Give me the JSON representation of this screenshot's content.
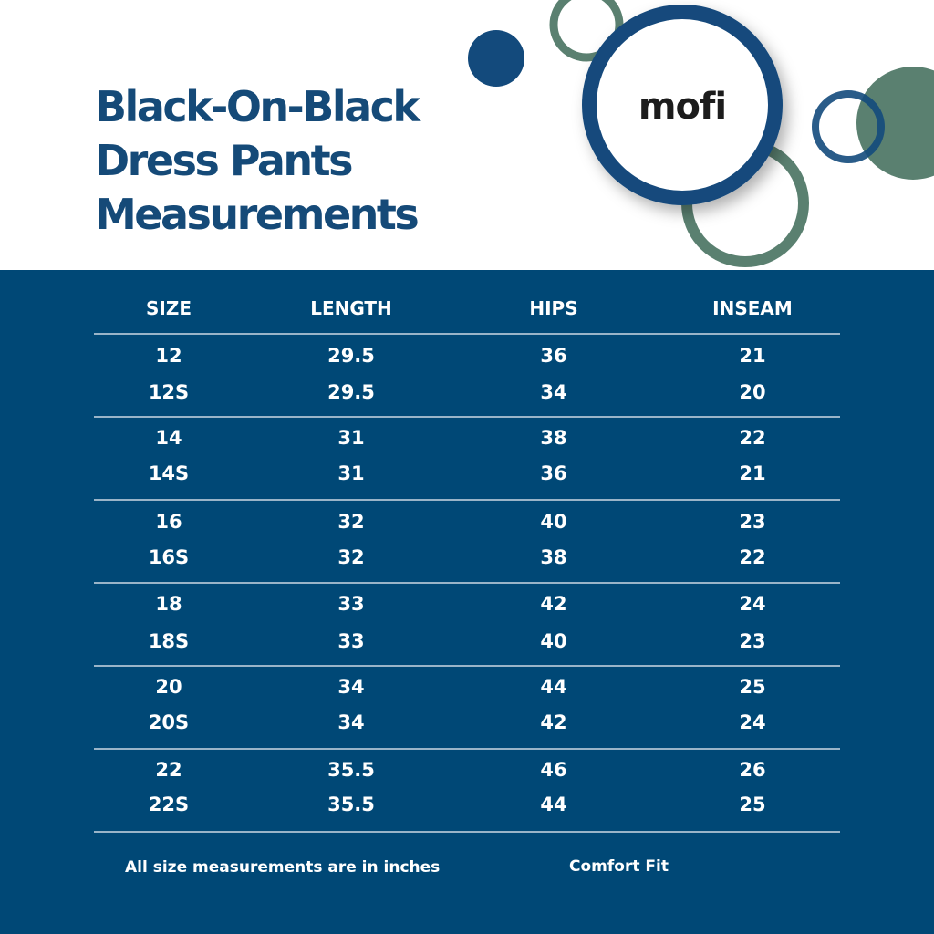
{
  "title": {
    "lines": [
      "Black-On-Black",
      "Dress Pants",
      "Measurements"
    ]
  },
  "logo": {
    "text": "mofi"
  },
  "colors": {
    "navy": "#004876",
    "title": "#154a78",
    "green": "#5a8070"
  },
  "table": {
    "headers": [
      "SIZE",
      "LENGTH",
      "HIPS",
      "INSEAM"
    ],
    "rows": [
      [
        "12",
        "29.5",
        "36",
        "21"
      ],
      [
        "12S",
        "29.5",
        "34",
        "20"
      ],
      [
        "14",
        "31",
        "38",
        "22"
      ],
      [
        "14S",
        "31",
        "36",
        "21"
      ],
      [
        "16",
        "32",
        "40",
        "23"
      ],
      [
        "16S",
        "32",
        "38",
        "22"
      ],
      [
        "18",
        "33",
        "42",
        "24"
      ],
      [
        "18S",
        "33",
        "40",
        "23"
      ],
      [
        "20",
        "34",
        "44",
        "25"
      ],
      [
        "20S",
        "34",
        "42",
        "24"
      ],
      [
        "22",
        "35.5",
        "46",
        "26"
      ],
      [
        "22S",
        "35.5",
        "44",
        "25"
      ]
    ]
  },
  "footer": {
    "note": "All size measurements are in inches",
    "fit": "Comfort Fit"
  }
}
